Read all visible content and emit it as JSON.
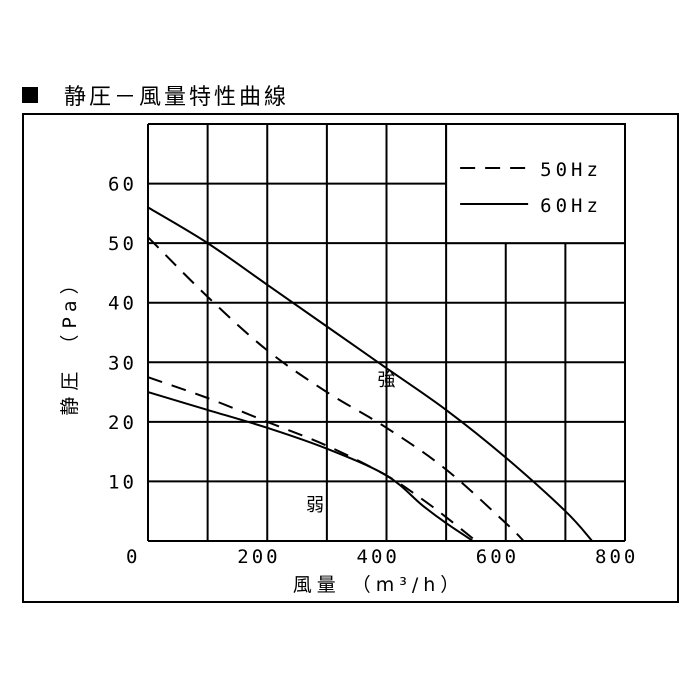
{
  "title": "静圧－風量特性曲線",
  "chart_data": {
    "type": "line",
    "title": "静圧－風量特性曲線",
    "xlabel": "風量 （m³/h）",
    "ylabel": "静圧 （Pa）",
    "xlim": [
      0,
      800
    ],
    "ylim": [
      0,
      70
    ],
    "x_ticks": [
      {
        "value": 0,
        "label": "0"
      },
      {
        "value": 200,
        "label": "200"
      },
      {
        "value": 400,
        "label": "400"
      },
      {
        "value": 600,
        "label": "600"
      },
      {
        "value": 800,
        "label": "800"
      }
    ],
    "y_ticks": [
      {
        "value": 10,
        "label": "10"
      },
      {
        "value": 20,
        "label": "20"
      },
      {
        "value": 30,
        "label": "30"
      },
      {
        "value": 40,
        "label": "40"
      },
      {
        "value": 50,
        "label": "50"
      },
      {
        "value": 60,
        "label": "60"
      }
    ],
    "grid": true,
    "legend": {
      "position": "top-right",
      "entries": [
        {
          "label": "50Hz",
          "style": "dashed"
        },
        {
          "label": "60Hz",
          "style": "solid"
        }
      ]
    },
    "series": [
      {
        "legend": "60Hz",
        "style": "solid",
        "group": "強",
        "x": [
          0,
          100,
          200,
          300,
          400,
          500,
          600,
          700,
          745
        ],
        "y": [
          56,
          50,
          43,
          36,
          29,
          22,
          14,
          5,
          0
        ]
      },
      {
        "legend": "50Hz",
        "style": "dashed",
        "group": "強",
        "x": [
          0,
          100,
          200,
          300,
          400,
          500,
          600,
          630
        ],
        "y": [
          51,
          41,
          32,
          25,
          19,
          12,
          3,
          0
        ]
      },
      {
        "legend": "50Hz",
        "style": "dashed",
        "group": "弱",
        "x": [
          0,
          100,
          200,
          300,
          400,
          460,
          500,
          550
        ],
        "y": [
          27.5,
          24,
          20,
          16,
          11,
          7,
          4,
          0
        ]
      },
      {
        "legend": "60Hz",
        "style": "solid",
        "group": "弱",
        "x": [
          0,
          100,
          200,
          300,
          400,
          460,
          500,
          545
        ],
        "y": [
          25,
          22,
          19,
          15.5,
          11,
          6,
          3,
          0
        ]
      }
    ],
    "annotations": [
      {
        "text": "強",
        "x": 385,
        "y": 26
      },
      {
        "text": "弱",
        "x": 265,
        "y": 5
      }
    ]
  }
}
